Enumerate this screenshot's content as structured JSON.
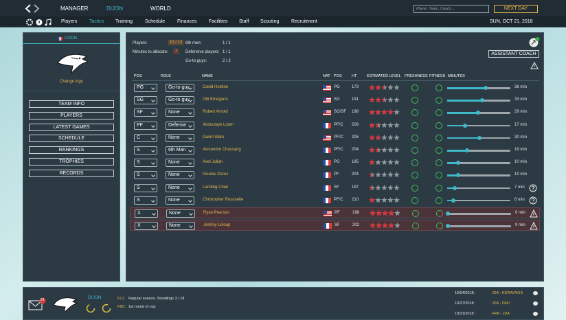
{
  "top_bar": {
    "nav": [
      "MANAGER",
      "DIJON",
      "WORLD"
    ],
    "active_nav": 1,
    "search_placeholder": "Player, Team, Coach...",
    "next_day": "NEXT DAY"
  },
  "tabs": {
    "items": [
      "Players",
      "Tactics",
      "Training",
      "Schedule",
      "Finances",
      "Facilities",
      "Staff",
      "Scouting",
      "Recruitment"
    ],
    "active": 1,
    "date": "SUN, OCT 21, 2018"
  },
  "sidebar": {
    "team": "DIJON",
    "change_logo": "Change logo",
    "buttons": [
      "TEAM INFO",
      "PLAYERS",
      "LATEST GAMES",
      "SCHEDULE",
      "RANKINGS",
      "TROPHIES",
      "RECORDS"
    ]
  },
  "summary": {
    "players_label": "Players:",
    "players": "10 / 12",
    "minutes_label": "Minutes to allocate:",
    "minutes": 2,
    "sixth_label": "6th men:",
    "sixth": "1 / 1",
    "defensive_label": "Defensive players:",
    "defensive": "1 / 1",
    "goto_label": "Go-to guys:",
    "goto": "2 / 2"
  },
  "assistant_coach": "ASSISTANT COACH",
  "table": {
    "headers": [
      "POS",
      "ROLE",
      "NAME",
      "NAT",
      "POS",
      "HT",
      "ESTIMATED LEVEL",
      "FRESHNESS",
      "FITNESS",
      "MINUTES"
    ],
    "rows": [
      {
        "pos": "PG",
        "role": "Go-to guy",
        "name": "David Holston",
        "flag": "us",
        "position": "PG",
        "height": 173,
        "level": 2.5,
        "minutes": 36,
        "minutes_label": "36 min",
        "status": "none"
      },
      {
        "pos": "SG",
        "role": "Go-to guy",
        "name": "Obi Emegano",
        "flag": "us",
        "position": "SG",
        "height": 191,
        "level": 2.5,
        "minutes": 33,
        "minutes_label": "33 min",
        "status": "none"
      },
      {
        "pos": "SF",
        "role": "None",
        "name": "Robert Arnold",
        "flag": "us",
        "position": "SG/SF",
        "height": 198,
        "level": 4,
        "minutes": 29,
        "minutes_label": "29 min",
        "status": "none"
      },
      {
        "pos": "PF",
        "role": "Defense",
        "name": "Abdoulaye Loum",
        "flag": "fr",
        "position": "PF/C",
        "height": 208,
        "level": 1.5,
        "minutes": 17,
        "minutes_label": "17 min",
        "status": "none"
      },
      {
        "pos": "C",
        "role": "None",
        "name": "Gavin Ware",
        "flag": "us",
        "position": "PF/C",
        "height": 206,
        "level": 2,
        "minutes": 30,
        "minutes_label": "30 min",
        "status": "none"
      },
      {
        "pos": "S",
        "role": "6th Man",
        "name": "Alexandre Chassang",
        "flag": "fr",
        "position": "PF/C",
        "height": 204,
        "level": 1.5,
        "minutes": 19,
        "minutes_label": "19 min",
        "status": "none"
      },
      {
        "pos": "S",
        "role": "None",
        "name": "Axel Julian",
        "flag": "fr",
        "position": "PG",
        "height": 185,
        "level": 1,
        "minutes": 10,
        "minutes_label": "10 min",
        "status": "none"
      },
      {
        "pos": "S",
        "role": "None",
        "name": "Nicolas Dorez",
        "flag": "fr",
        "position": "PF",
        "height": 204,
        "level": 0.5,
        "minutes": 10,
        "minutes_label": "10 min",
        "status": "none"
      },
      {
        "pos": "S",
        "role": "None",
        "name": "Landing Cheri",
        "flag": "fr",
        "position": "SF",
        "height": 197,
        "level": 0.5,
        "minutes": 7,
        "minutes_label": "7 min",
        "status": "question"
      },
      {
        "pos": "S",
        "role": "None",
        "name": "Christopher Rousselle",
        "flag": "fr",
        "position": "PF/C",
        "height": 210,
        "level": 1,
        "minutes": 6,
        "minutes_label": "6 min",
        "status": "question"
      },
      {
        "pos": "X",
        "role": "None",
        "name": "Ryan Pearson",
        "flag": "us",
        "position": "PF",
        "height": 198,
        "level": 4,
        "minutes": 0,
        "minutes_label": "0 min",
        "status": "injured"
      },
      {
        "pos": "X",
        "role": "None",
        "name": "Jérémy Leloup",
        "flag": "fr",
        "position": "SF",
        "height": 202,
        "level": 4,
        "minutes": 0,
        "minutes_label": "0 min",
        "status": "injured"
      }
    ]
  },
  "footer": {
    "mail_count": 24,
    "team": "DIJON",
    "competitions": [
      {
        "label": "FL1:",
        "text": "Regular season, Standings 3 / 18"
      },
      {
        "label": "FBC:",
        "text": "1st round of cup"
      }
    ],
    "games": [
      {
        "date": "10/24/2018:",
        "match": "JDA - KERAVNOS"
      },
      {
        "date": "10/27/2018:",
        "match": "JDA - PAU"
      },
      {
        "date": "10/31/2018:",
        "match": "FRA - JDA"
      }
    ]
  }
}
